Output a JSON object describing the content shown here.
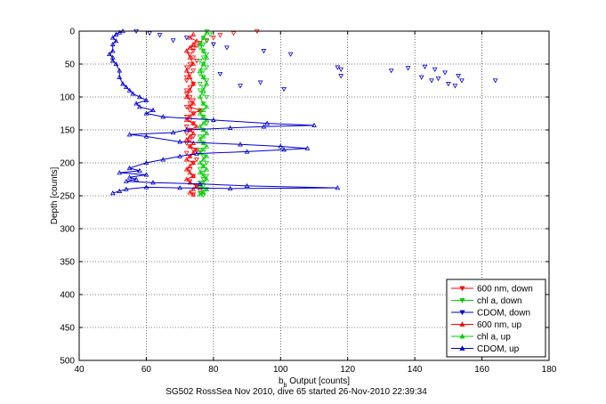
{
  "chart_data": {
    "type": "line",
    "xlabel_main": "b",
    "xlabel_sub": "b",
    "xlabel_rest": " Output [counts]",
    "ylabel": "Depth [counts]",
    "caption": "SG502 RossSea Nov 2010, dive 65 started 26-Nov-2010 22:39:34",
    "xlim": [
      40,
      180
    ],
    "ylim": [
      0,
      500
    ],
    "y_reversed": true,
    "grid": true,
    "legend_position": "bottom-right",
    "xticks": [
      40,
      60,
      80,
      100,
      120,
      140,
      160,
      180
    ],
    "yticks": [
      0,
      50,
      100,
      150,
      200,
      250,
      300,
      350,
      400,
      450,
      500
    ],
    "series": [
      {
        "name": "600 nm, down",
        "color": "#ff0000",
        "marker": "triangle-down",
        "line": false,
        "x": [
          93,
          86,
          82,
          80,
          78,
          76,
          75,
          74,
          74,
          73,
          74,
          75,
          73,
          72,
          74,
          73,
          72,
          72,
          74,
          73,
          72,
          72,
          73,
          74,
          73,
          72,
          73,
          74,
          72,
          73,
          74,
          72,
          73,
          72,
          74,
          73,
          72,
          73,
          74,
          72,
          73,
          75,
          74,
          73,
          74,
          73,
          75,
          76,
          74
        ],
        "y": [
          0,
          3,
          6,
          10,
          14,
          18,
          22,
          26,
          30,
          35,
          40,
          45,
          50,
          55,
          60,
          65,
          70,
          75,
          80,
          85,
          90,
          95,
          100,
          105,
          110,
          115,
          120,
          125,
          130,
          135,
          140,
          145,
          150,
          155,
          160,
          165,
          170,
          175,
          180,
          185,
          190,
          195,
          200,
          210,
          220,
          228,
          235,
          242,
          248
        ]
      },
      {
        "name": "chl a, down",
        "color": "#00cc00",
        "marker": "triangle-down",
        "line": false,
        "x": [
          78,
          79,
          77,
          78,
          77,
          76,
          77,
          78,
          77,
          76,
          77,
          78,
          77,
          76,
          77,
          78,
          76,
          77,
          76,
          77,
          78,
          77,
          76,
          77,
          78,
          77,
          76,
          77,
          76,
          77,
          78,
          77,
          76,
          77,
          78,
          77,
          76,
          77,
          78,
          77,
          76,
          77
        ],
        "y": [
          0,
          5,
          10,
          15,
          20,
          25,
          30,
          35,
          40,
          45,
          50,
          55,
          60,
          65,
          70,
          75,
          80,
          85,
          90,
          95,
          100,
          110,
          120,
          130,
          140,
          150,
          160,
          170,
          180,
          190,
          200,
          205,
          210,
          215,
          220,
          225,
          230,
          235,
          240,
          243,
          246,
          249
        ]
      },
      {
        "name": "CDOM, down",
        "color": "#0000cc",
        "marker": "triangle-down",
        "line": false,
        "x": [
          57,
          61,
          64,
          72,
          68,
          80,
          84,
          95,
          103,
          117,
          118,
          133,
          138,
          142,
          145,
          147,
          150,
          152,
          154,
          164,
          153,
          149,
          146,
          143,
          118,
          101,
          94,
          88,
          82
        ],
        "y": [
          0,
          3,
          6,
          10,
          14,
          20,
          25,
          30,
          35,
          55,
          58,
          60,
          56,
          70,
          75,
          72,
          80,
          83,
          75,
          75,
          68,
          63,
          58,
          54,
          68,
          88,
          78,
          83,
          65
        ]
      },
      {
        "name": "600 nm, up",
        "color": "#ff0000",
        "marker": "triangle-up",
        "line": true,
        "x": [
          74,
          73,
          74,
          75,
          73,
          72,
          74,
          73,
          72,
          73,
          74,
          72,
          73,
          74,
          75,
          73,
          74,
          72,
          73,
          74,
          73,
          75,
          74,
          72,
          73,
          74,
          76,
          73,
          74,
          72,
          73,
          74,
          73,
          72,
          74,
          73,
          72,
          73,
          74,
          75,
          73,
          74
        ],
        "y": [
          248,
          245,
          240,
          235,
          230,
          225,
          220,
          215,
          210,
          205,
          200,
          195,
          190,
          185,
          180,
          175,
          170,
          165,
          160,
          155,
          150,
          145,
          140,
          135,
          130,
          125,
          120,
          115,
          110,
          100,
          90,
          80,
          70,
          60,
          50,
          40,
          30,
          25,
          20,
          15,
          10,
          5
        ]
      },
      {
        "name": "chl a, up",
        "color": "#00cc00",
        "marker": "triangle-up",
        "line": true,
        "x": [
          76,
          77,
          78,
          76,
          77,
          78,
          77,
          76,
          78,
          77,
          76,
          77,
          78,
          76,
          77,
          78,
          77,
          76,
          77,
          78,
          77,
          76,
          77,
          78,
          77,
          76,
          77,
          78,
          77,
          76,
          77,
          78,
          77,
          76,
          77,
          78,
          77,
          76,
          77,
          78
        ],
        "y": [
          248,
          245,
          240,
          235,
          230,
          225,
          220,
          215,
          210,
          205,
          200,
          195,
          190,
          185,
          180,
          175,
          170,
          165,
          160,
          155,
          150,
          145,
          140,
          135,
          130,
          125,
          120,
          115,
          110,
          100,
          90,
          80,
          70,
          60,
          50,
          40,
          30,
          20,
          10,
          2
        ]
      },
      {
        "name": "CDOM, up",
        "color": "#0000cc",
        "marker": "triangle-up",
        "line": true,
        "x": [
          50,
          52,
          54,
          60,
          70,
          85,
          117,
          90,
          76,
          62,
          54,
          57,
          55,
          60,
          52,
          58,
          55,
          60,
          65,
          70,
          75,
          90,
          101,
          108,
          100,
          88,
          70,
          60,
          55,
          68,
          72,
          85,
          95,
          110,
          96,
          80,
          65,
          60,
          62,
          58,
          57,
          60,
          58,
          56,
          55,
          54,
          53,
          52,
          52,
          51,
          50,
          50,
          49,
          50,
          50,
          51,
          50,
          51,
          52,
          53
        ],
        "y": [
          246,
          243,
          240,
          237,
          238,
          239,
          238,
          235,
          232,
          230,
          228,
          225,
          222,
          218,
          215,
          212,
          208,
          200,
          195,
          190,
          186,
          183,
          180,
          178,
          175,
          172,
          168,
          160,
          157,
          154,
          150,
          147,
          145,
          143,
          140,
          135,
          130,
          125,
          120,
          115,
          110,
          105,
          100,
          95,
          90,
          85,
          80,
          70,
          60,
          50,
          45,
          40,
          35,
          30,
          20,
          15,
          10,
          5,
          2,
          0
        ]
      }
    ]
  }
}
